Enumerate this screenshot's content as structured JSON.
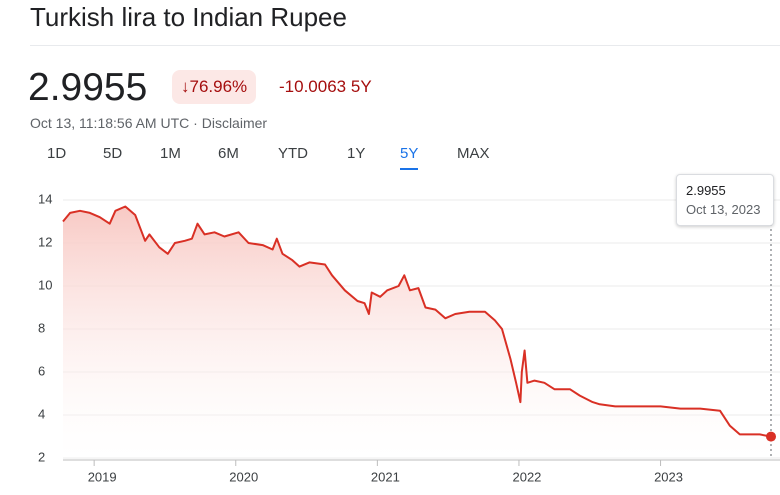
{
  "header": {
    "title": "Turkish lira to Indian Rupee",
    "price": "2.9955",
    "change_percent": "76.96%",
    "change": "-10.0063",
    "period": "5Y",
    "timestamp": "Oct 13, 11:18:56 AM UTC",
    "disclaimer": "Disclaimer"
  },
  "tabs": [
    "1D",
    "5D",
    "1M",
    "6M",
    "YTD",
    "1Y",
    "5Y",
    "MAX"
  ],
  "selected_tab": 6,
  "tooltip": {
    "date": "Oct 13, 2023"
  },
  "chart_data": {
    "type": "line",
    "color": "#d93025",
    "x": [
      2018.78,
      2018.83,
      2018.9,
      2018.97,
      2019.04,
      2019.11,
      2019.15,
      2019.22,
      2019.29,
      2019.36,
      2019.39,
      2019.46,
      2019.52,
      2019.57,
      2019.64,
      2019.69,
      2019.73,
      2019.78,
      2019.85,
      2019.92,
      2020.02,
      2020.09,
      2020.19,
      2020.26,
      2020.29,
      2020.33,
      2020.4,
      2020.45,
      2020.52,
      2020.63,
      2020.68,
      2020.77,
      2020.86,
      2020.91,
      2020.94,
      2020.96,
      2021.02,
      2021.07,
      2021.15,
      2021.19,
      2021.23,
      2021.29,
      2021.34,
      2021.41,
      2021.48,
      2021.55,
      2021.65,
      2021.76,
      2021.83,
      2021.88,
      2021.94,
      2021.98,
      2022.01,
      2022.02,
      2022.04,
      2022.06,
      2022.11,
      2022.18,
      2022.25,
      2022.36,
      2022.43,
      2022.52,
      2022.57,
      2022.68,
      2022.85,
      2023.0,
      2023.14,
      2023.28,
      2023.42,
      2023.49,
      2023.56,
      2023.63,
      2023.7,
      2023.78
    ],
    "values": [
      13.0,
      13.4,
      13.5,
      13.4,
      13.2,
      12.9,
      13.5,
      13.7,
      13.3,
      12.1,
      12.4,
      11.8,
      11.5,
      12.0,
      12.1,
      12.2,
      12.9,
      12.4,
      12.5,
      12.3,
      12.5,
      12.0,
      11.9,
      11.7,
      12.2,
      11.5,
      11.2,
      10.9,
      11.1,
      11.0,
      10.5,
      9.8,
      9.3,
      9.2,
      8.7,
      9.7,
      9.5,
      9.8,
      10.0,
      10.5,
      9.8,
      9.9,
      9.0,
      8.9,
      8.5,
      8.7,
      8.8,
      8.8,
      8.4,
      8.0,
      6.6,
      5.5,
      4.6,
      6.0,
      7.0,
      5.5,
      5.6,
      5.5,
      5.2,
      5.2,
      4.9,
      4.6,
      4.5,
      4.4,
      4.4,
      4.4,
      4.3,
      4.3,
      4.2,
      3.5,
      3.1,
      3.1,
      3.1,
      2.9955
    ],
    "xlim": [
      2018.78,
      2023.78
    ],
    "xticks": [
      2019,
      2020,
      2021,
      2022,
      2023
    ],
    "ylim": [
      2,
      14
    ],
    "yticks": [
      2,
      4,
      6,
      8,
      10,
      12,
      14
    ],
    "grid": true
  }
}
